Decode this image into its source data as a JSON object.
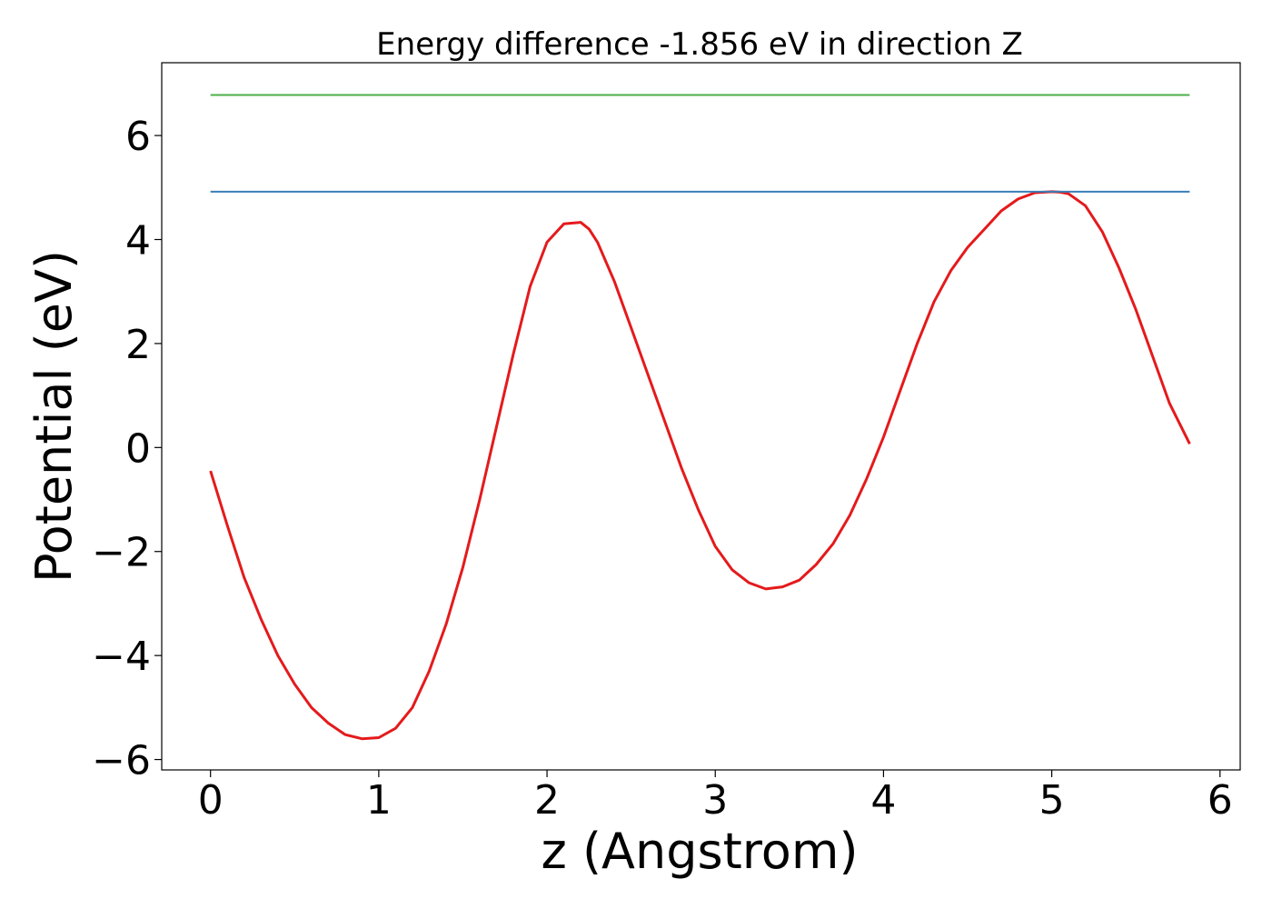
{
  "chart_data": {
    "type": "line",
    "title": "Energy difference -1.856 eV in direction Z",
    "xlabel": "z (Angstrom)",
    "ylabel": "Potential (eV)",
    "xlim": [
      -0.29,
      6.12
    ],
    "ylim": [
      -6.2,
      7.4
    ],
    "xticks": [
      0,
      1,
      2,
      3,
      4,
      5,
      6
    ],
    "xtick_labels": [
      "0",
      "1",
      "2",
      "3",
      "4",
      "5",
      "6"
    ],
    "yticks": [
      -6,
      -4,
      -2,
      0,
      2,
      4,
      6
    ],
    "ytick_labels": [
      "−6",
      "−4",
      "−2",
      "0",
      "2",
      "4",
      "6"
    ],
    "grid": false,
    "series": [
      {
        "color": "#e41a1c",
        "x": [
          0,
          0.1,
          0.2,
          0.3,
          0.4,
          0.5,
          0.6,
          0.7,
          0.8,
          0.9,
          1.0,
          1.1,
          1.2,
          1.3,
          1.4,
          1.5,
          1.6,
          1.7,
          1.8,
          1.9,
          2.0,
          2.1,
          2.2,
          2.25,
          2.3,
          2.4,
          2.5,
          2.6,
          2.7,
          2.8,
          2.9,
          3.0,
          3.1,
          3.2,
          3.3,
          3.4,
          3.5,
          3.6,
          3.7,
          3.8,
          3.9,
          4.0,
          4.1,
          4.2,
          4.3,
          4.4,
          4.5,
          4.6,
          4.7,
          4.8,
          4.9,
          5.0,
          5.05,
          5.1,
          5.2,
          5.3,
          5.4,
          5.5,
          5.6,
          5.7,
          5.82
        ],
        "y": [
          -0.45,
          -1.5,
          -2.5,
          -3.3,
          -4.0,
          -4.55,
          -5.0,
          -5.3,
          -5.52,
          -5.6,
          -5.58,
          -5.4,
          -5.0,
          -4.3,
          -3.4,
          -2.3,
          -1.0,
          0.4,
          1.8,
          3.1,
          3.95,
          4.3,
          4.33,
          4.2,
          3.95,
          3.2,
          2.3,
          1.4,
          0.5,
          -0.4,
          -1.2,
          -1.9,
          -2.35,
          -2.6,
          -2.72,
          -2.68,
          -2.55,
          -2.25,
          -1.85,
          -1.3,
          -0.6,
          0.2,
          1.1,
          2.0,
          2.8,
          3.4,
          3.85,
          4.2,
          4.55,
          4.78,
          4.9,
          4.92,
          4.91,
          4.88,
          4.65,
          4.15,
          3.45,
          2.65,
          1.75,
          0.85,
          0.07
        ]
      },
      {
        "color": "#377eb8",
        "x": [
          0,
          5.82
        ],
        "y": [
          4.92,
          4.92
        ]
      },
      {
        "color": "#4daf4a",
        "x": [
          0,
          5.82
        ],
        "y": [
          6.78,
          6.78
        ]
      }
    ]
  }
}
